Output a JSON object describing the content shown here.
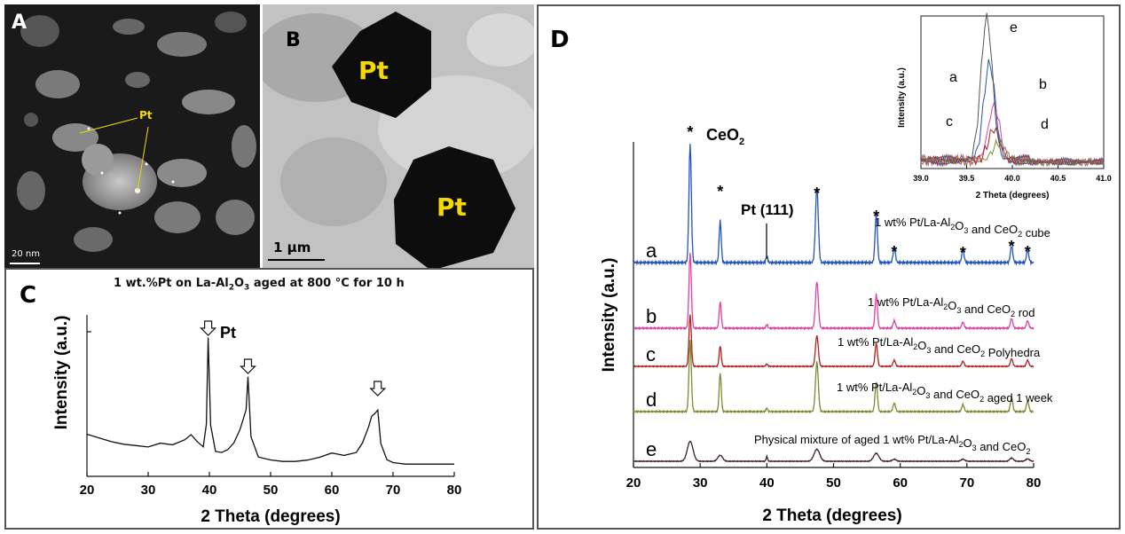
{
  "panel_a": {
    "letter": "A",
    "pt_label": "Pt",
    "scale_bar": "20 nm"
  },
  "panel_b": {
    "letter": "B",
    "pt_label_top": "Pt",
    "pt_label_bottom": "Pt",
    "scale_bar": "1 μm"
  },
  "panel_c": {
    "letter": "C",
    "caption_main": "1 wt.%Pt on La-Al",
    "caption_sub": "2",
    "caption_mid": "O",
    "caption_sub2": "3",
    "caption_end": " aged at 800 °C for 10 h",
    "peak_label": "Pt",
    "peak_arrow_count": 3
  },
  "panel_d": {
    "letter": "D",
    "ceo2_label": "CeO",
    "ceo2_sub": "2",
    "pt111_label": "Pt (111)"
  },
  "chart_data": [
    {
      "type": "line",
      "panel": "C",
      "title": "",
      "xlabel": "2 Theta (degrees)",
      "ylabel": "Intensity (a.u.)",
      "xlim": [
        20,
        80
      ],
      "xticks": [
        20,
        30,
        40,
        50,
        60,
        70,
        80
      ],
      "series": [
        {
          "x": [
            20,
            22,
            24,
            26,
            28,
            30,
            32,
            34,
            36,
            37,
            38,
            39,
            39.5,
            39.8,
            40.2,
            41,
            42,
            43,
            44,
            45,
            46,
            46.3,
            46.8,
            48,
            50,
            52,
            54,
            56,
            58,
            60,
            62,
            64,
            65,
            66,
            66.5,
            67,
            67.5,
            68,
            69,
            70,
            72,
            76,
            80
          ],
          "y": [
            0.27,
            0.24,
            0.21,
            0.19,
            0.18,
            0.17,
            0.2,
            0.19,
            0.23,
            0.27,
            0.22,
            0.18,
            0.35,
            1.0,
            0.34,
            0.14,
            0.13,
            0.15,
            0.2,
            0.3,
            0.45,
            0.7,
            0.25,
            0.1,
            0.08,
            0.07,
            0.07,
            0.08,
            0.1,
            0.13,
            0.11,
            0.13,
            0.2,
            0.32,
            0.4,
            0.42,
            0.45,
            0.2,
            0.08,
            0.06,
            0.05,
            0.05,
            0.05
          ]
        }
      ],
      "annotations": [
        "Pt"
      ]
    },
    {
      "type": "line",
      "panel": "D",
      "title": "",
      "xlabel": "2 Theta (degrees)",
      "ylabel": "Intensity (a.u.)",
      "xlim": [
        20,
        80
      ],
      "xticks": [
        20,
        30,
        40,
        50,
        60,
        70,
        80
      ],
      "peak_positions": [
        28.5,
        33.0,
        40.0,
        47.5,
        56.4,
        59.1,
        69.4,
        76.7,
        79.1
      ],
      "series": [
        {
          "name": "a",
          "label": "1 wt% Pt/La-Al",
          "label_sub1": "2",
          "label_mid": "O",
          "label_sub2": "3",
          "label_end": " and CeO",
          "label_sub3": "2",
          "label_tail": " cube",
          "color": "#2255bb",
          "intensities": [
            1.0,
            0.35,
            0.06,
            0.62,
            0.4,
            0.12,
            0.1,
            0.14,
            0.1
          ]
        },
        {
          "name": "b",
          "label": "1 wt% Pt/La-Al",
          "label_sub1": "2",
          "label_mid": "O",
          "label_sub2": "3",
          "label_end": " and CeO",
          "label_sub3": "2",
          "label_tail": " rod",
          "color": "#e040a0",
          "intensities": [
            1.0,
            0.35,
            0.05,
            0.62,
            0.45,
            0.1,
            0.08,
            0.13,
            0.1
          ]
        },
        {
          "name": "c",
          "label": "1 wt% Pt/La-Al",
          "label_sub1": "2",
          "label_mid": "O",
          "label_sub2": "3",
          "label_end": " and CeO",
          "label_sub3": "2",
          "label_tail": " Polyhedra",
          "color": "#b02020",
          "intensities": [
            1.0,
            0.4,
            0.05,
            0.6,
            0.45,
            0.12,
            0.1,
            0.15,
            0.12
          ]
        },
        {
          "name": "d",
          "label": "1 wt% Pt/La-Al",
          "label_sub1": "2",
          "label_mid": "O",
          "label_sub2": "3",
          "label_end": " and CeO",
          "label_sub3": "2",
          "label_tail": " aged 1 week",
          "color": "#7a8a30",
          "intensities": [
            1.0,
            0.55,
            0.05,
            0.7,
            0.42,
            0.12,
            0.1,
            0.2,
            0.15
          ]
        },
        {
          "name": "e",
          "label": "Physical mixture of aged 1 wt% Pt/La-Al",
          "label_sub1": "2",
          "label_mid": "O",
          "label_sub2": "3",
          "label_end": " and CeO",
          "label_sub3": "2",
          "label_tail": "",
          "color": "#3a2020",
          "intensities": [
            0.5,
            0.15,
            0.12,
            0.3,
            0.2,
            0.05,
            0.05,
            0.08,
            0.06
          ]
        }
      ],
      "annotations": [
        "*",
        "CeO2",
        "Pt (111)"
      ]
    },
    {
      "type": "line",
      "panel": "D-inset",
      "title": "",
      "xlabel": "2 Theta (degrees)",
      "ylabel": "Intensity (a.u.)",
      "xlim": [
        39.0,
        41.0
      ],
      "xticks": [
        "39.0",
        "39.5",
        "40.0",
        "40.5",
        "41.0"
      ],
      "series": [
        {
          "name": "a",
          "color": "#2255bb",
          "peak_x": 39.75,
          "peak_y": 0.68
        },
        {
          "name": "b",
          "color": "#e040a0",
          "peak_x": 39.8,
          "peak_y": 0.38
        },
        {
          "name": "c",
          "color": "#b02020",
          "peak_x": 39.8,
          "peak_y": 0.22
        },
        {
          "name": "d",
          "color": "#7a8a30",
          "peak_x": 39.85,
          "peak_y": 0.12
        },
        {
          "name": "e",
          "color": "#555555",
          "peak_x": 39.72,
          "peak_y": 1.0
        }
      ]
    }
  ]
}
